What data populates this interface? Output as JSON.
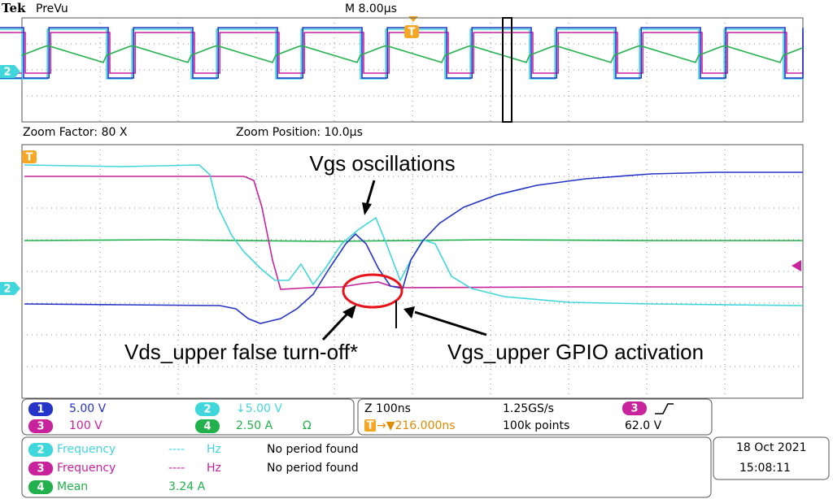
{
  "header": {
    "brand": "Tek",
    "mode": "PreVu",
    "timebase": "M 8.00µs"
  },
  "zoom": {
    "factor": "Zoom Factor: 80 X",
    "position": "Zoom Position: 10.0µs"
  },
  "markers": {
    "channel": "2",
    "trigger": "T"
  },
  "annotations": [
    "Vgs oscillations",
    "Vds_upper false turn-off*",
    "Vgs_upper GPIO activation"
  ],
  "channels": [
    {
      "number": "1",
      "scale": "5.00 V"
    },
    {
      "number": "2",
      "scale": "↓5.00 V"
    },
    {
      "number": "3",
      "scale": "100 V"
    },
    {
      "number": "4",
      "scale": "2.50 A",
      "extra": "Ω"
    }
  ],
  "acquisition": {
    "zoom": "Z 100ns",
    "rate": "1.25GS/s",
    "trigger_source": "3",
    "trigger_position": "→▼216.000ns",
    "points": "100k points",
    "level": "62.0 V"
  },
  "measurements": [
    {
      "channel": "2",
      "name": "Frequency",
      "value": "----",
      "unit": "Hz",
      "status": "No period found"
    },
    {
      "channel": "3",
      "name": "Frequency",
      "value": "----",
      "unit": "Hz",
      "status": "No period found"
    },
    {
      "channel": "4",
      "name": "Mean",
      "value": "3.24 A"
    }
  ],
  "timestamp": {
    "date": "18 Oct  2021",
    "time": "15:08:11"
  }
}
